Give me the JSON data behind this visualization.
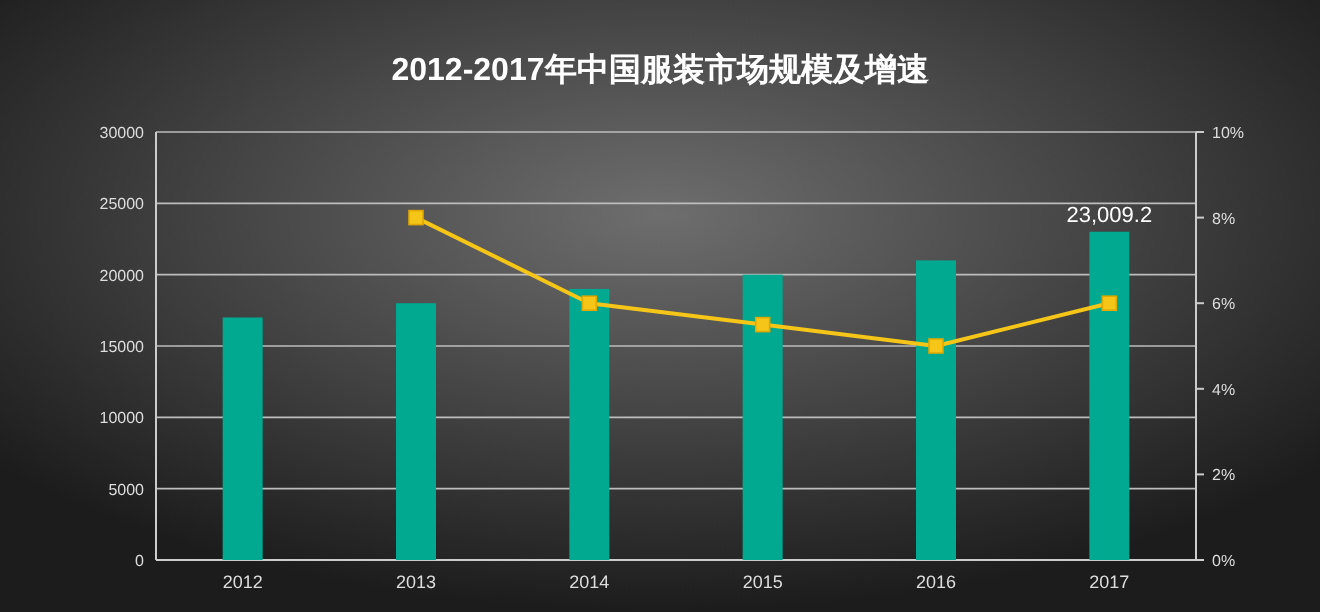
{
  "chart_data": {
    "type": "bar",
    "title": "2012-2017年中国服装市场规模及增速",
    "categories": [
      "2012",
      "2013",
      "2014",
      "2015",
      "2016",
      "2017"
    ],
    "series": [
      {
        "color": "#00a98f",
        "values": [
          17000,
          18000,
          19000,
          20000,
          21000,
          23009.2
        ],
        "value_labels": [
          null,
          null,
          null,
          null,
          null,
          "23,009.2"
        ]
      },
      {
        "type": "line",
        "axis": "y2",
        "color": "#f5c518",
        "marker": "square",
        "values": [
          null,
          8,
          6,
          5.5,
          5,
          6
        ]
      }
    ],
    "ylim": [
      0,
      30000
    ],
    "yticks": [
      0,
      5000,
      10000,
      15000,
      20000,
      25000,
      30000
    ],
    "y2lim": [
      0,
      10
    ],
    "y2ticks": [
      {
        "value": 0,
        "label": "0%"
      },
      {
        "value": 2,
        "label": "2%"
      },
      {
        "value": 4,
        "label": "4%"
      },
      {
        "value": 6,
        "label": "6%"
      },
      {
        "value": 8,
        "label": "8%"
      },
      {
        "value": 10,
        "label": "10%"
      }
    ],
    "grid": "y"
  }
}
